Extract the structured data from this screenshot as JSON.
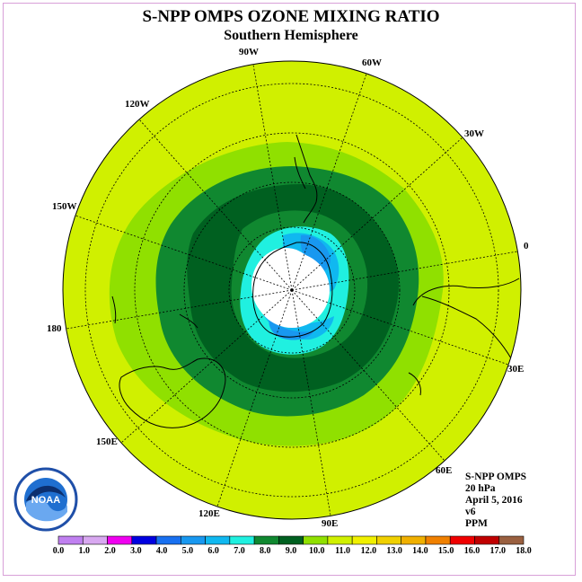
{
  "title": "S-NPP OMPS OZONE MIXING RATIO",
  "subtitle": "Southern Hemisphere",
  "longitude_labels": {
    "w90": "90W",
    "w60": "60W",
    "w30": "30W",
    "e0": "0",
    "w120": "120W",
    "w150": "150W",
    "d180": "180",
    "e30": "30E",
    "e60": "60E",
    "e90": "90E",
    "e120": "120E",
    "e150": "150E"
  },
  "info": {
    "instrument": "S-NPP OMPS",
    "level": "20 hPa",
    "date": "April 5, 2016",
    "version": "v6",
    "units": "PPM"
  },
  "logo_text": "NOAA",
  "colorbar": {
    "ticks": [
      "0.0",
      "1.0",
      "2.0",
      "3.0",
      "4.0",
      "5.0",
      "6.0",
      "7.0",
      "8.0",
      "9.0",
      "10.0",
      "11.0",
      "12.0",
      "13.0",
      "14.0",
      "15.0",
      "16.0",
      "17.0",
      "18.0"
    ],
    "colors": [
      "#c080f0",
      "#d8a8f0",
      "#f000f0",
      "#0000e0",
      "#1870f0",
      "#1898f0",
      "#10b8f0",
      "#20f0e0",
      "#108830",
      "#006020",
      "#90e000",
      "#d0f000",
      "#f0f000",
      "#f0d000",
      "#f0b000",
      "#f08000",
      "#f00000",
      "#c00000",
      "#9a6040"
    ]
  },
  "map_fill_colors": {
    "background": "#d0f000",
    "band_11": "#90e000",
    "band_10": "#108830",
    "band_9": "#006020",
    "band_8": "#20f0e0",
    "band_7": "#10b8f0",
    "band_6": "#1898f0",
    "pole_missing": "#ffffff"
  }
}
